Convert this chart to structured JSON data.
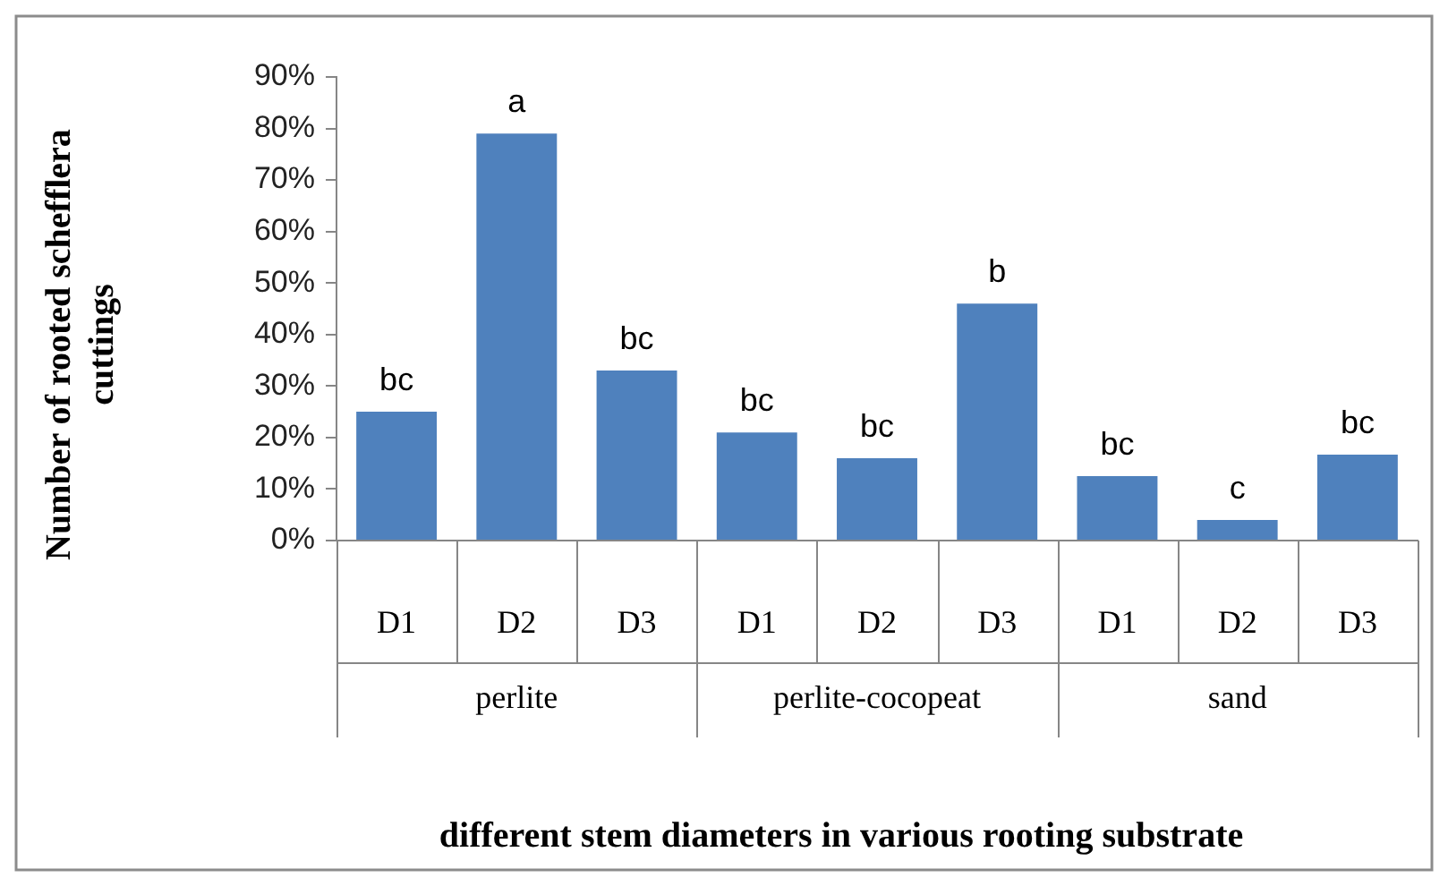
{
  "chart_data": {
    "type": "bar",
    "xlabel": "different stem diameters in various rooting substrate",
    "ylabel": "Number of rooted schefflera cuttings",
    "categories": [
      "D1",
      "D2",
      "D3",
      "D1",
      "D2",
      "D3",
      "D1",
      "D2",
      "D3"
    ],
    "values": [
      25,
      79,
      33,
      21,
      16,
      46,
      12.5,
      4,
      16.7
    ],
    "value_labels": [
      "bc",
      "a",
      "bc",
      "bc",
      "bc",
      "b",
      "bc",
      "c",
      "bc"
    ],
    "color": "#4f81bd",
    "annotations": [
      "perlite",
      "perlite-cocopeat",
      "sand"
    ],
    "ylim": [
      0,
      90
    ],
    "yticks": [
      {
        "value": 0,
        "label": "0%"
      },
      {
        "value": 10,
        "label": "10%"
      },
      {
        "value": 20,
        "label": "20%"
      },
      {
        "value": 30,
        "label": "30%"
      },
      {
        "value": 40,
        "label": "40%"
      },
      {
        "value": 50,
        "label": "50%"
      },
      {
        "value": 60,
        "label": "60%"
      },
      {
        "value": 70,
        "label": "70%"
      },
      {
        "value": 80,
        "label": "80%"
      },
      {
        "value": 90,
        "label": "90%"
      }
    ],
    "grid": false,
    "legend": false
  }
}
